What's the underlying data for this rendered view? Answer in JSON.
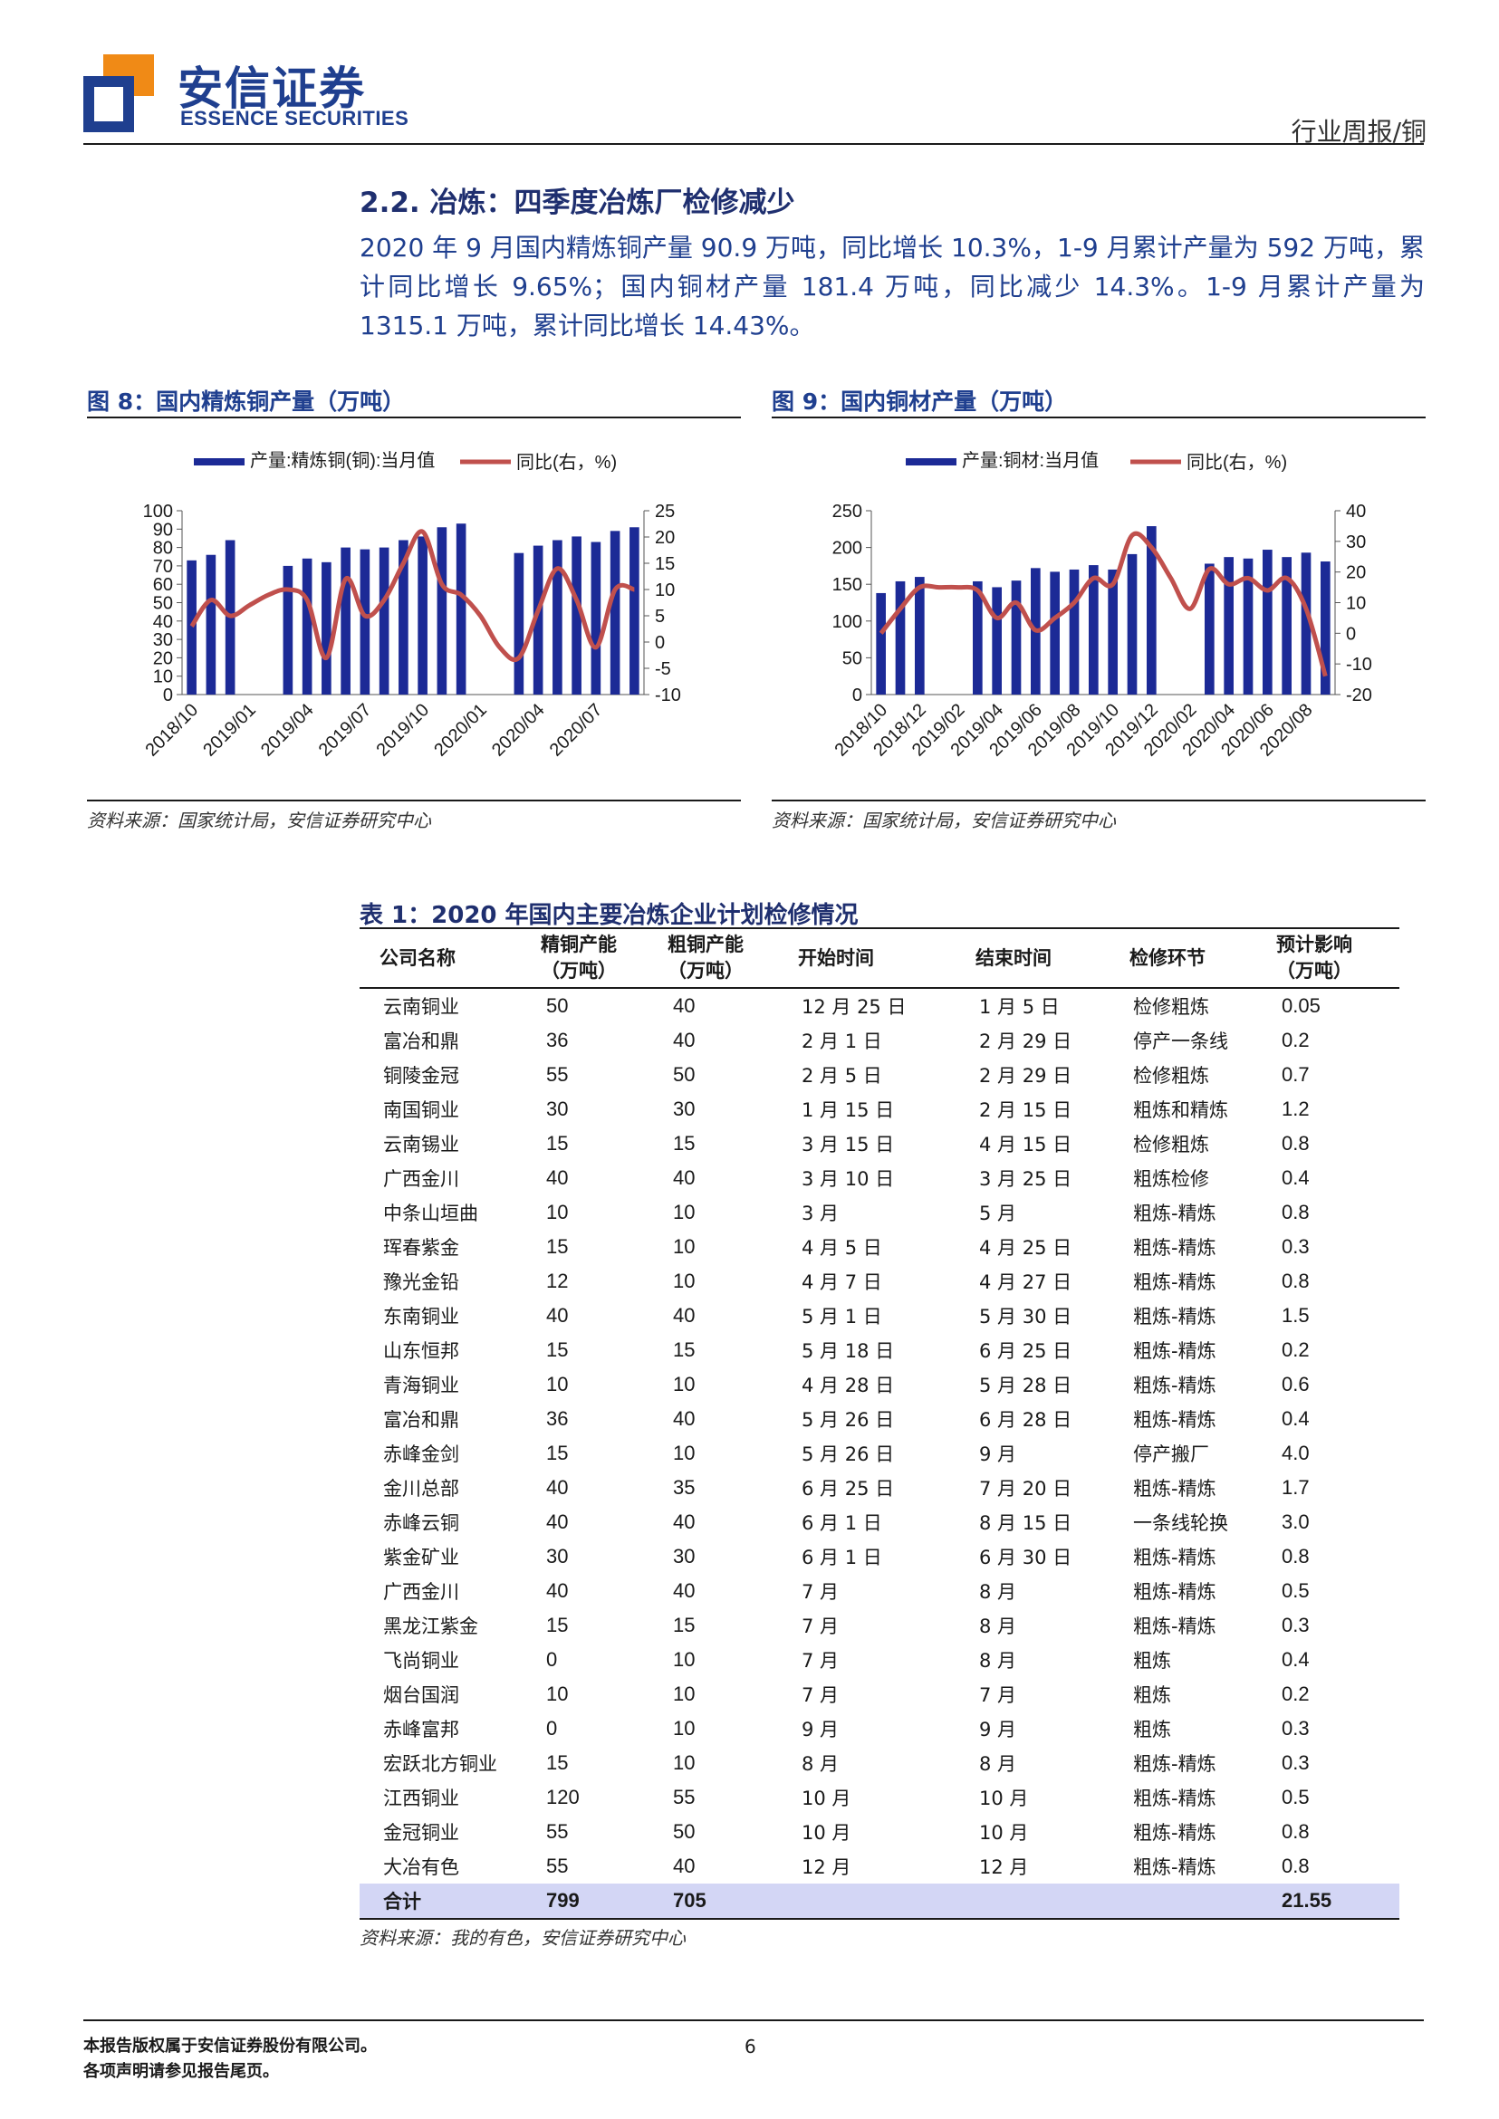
{
  "header": {
    "brand_cn": "安信证券",
    "brand_en": "ESSENCE SECURITIES",
    "report_type": "行业周报/铜",
    "logo_colors": {
      "orange": "#f08a16",
      "blue": "#1f3f8f"
    }
  },
  "section": {
    "title": "2.2. 冶炼：四季度冶炼厂检修减少",
    "paragraph": "2020 年 9 月国内精炼铜产量 90.9 万吨，同比增长 10.3%，1-9 月累计产量为 592 万吨，累计同比增长 9.65%；国内铜材产量 181.4 万吨，同比减少 14.3%。1-9 月累计产量为 1315.1 万吨，累计同比增长 14.43%。"
  },
  "figures": [
    {
      "title": "图 8：国内精炼铜产量（万吨）",
      "source": "资料来源：国家统计局，安信证券研究中心"
    },
    {
      "title": "图 9：国内铜材产量（万吨）",
      "source": "资料来源：国家统计局，安信证券研究中心"
    }
  ],
  "chart_data": [
    {
      "type": "bar",
      "legend": [
        "产量:精炼铜(铜):当月值",
        "同比(右，%)"
      ],
      "x_tick_labels": [
        "2018/10",
        "2019/01",
        "2019/04",
        "2019/07",
        "2019/10",
        "2020/01",
        "2020/04",
        "2020/07"
      ],
      "left_ticks": [
        "100",
        "90",
        "80",
        "70",
        "60",
        "50",
        "40",
        "30",
        "20",
        "10",
        "0"
      ],
      "right_ticks": [
        "25",
        "20",
        "15",
        "10",
        "5",
        "0",
        "-5",
        "-10"
      ],
      "ylim": [
        0,
        100
      ],
      "y2lim": [
        -10,
        25
      ],
      "categories": [
        "2018/10",
        "2018/11",
        "2018/12",
        "2019/01",
        "2019/02",
        "2019/03",
        "2019/04",
        "2019/05",
        "2019/06",
        "2019/07",
        "2019/08",
        "2019/09",
        "2019/10",
        "2019/11",
        "2019/12",
        "2020/01",
        "2020/02",
        "2020/03",
        "2020/04",
        "2020/05",
        "2020/06",
        "2020/07",
        "2020/08",
        "2020/09"
      ],
      "series": [
        {
          "name": "产量:精炼铜(铜):当月值",
          "kind": "bar",
          "axis": "left",
          "color": "#1c2a96",
          "values": [
            73,
            76,
            84,
            null,
            null,
            70,
            74,
            72,
            80,
            79,
            80,
            84,
            86,
            91,
            93,
            null,
            null,
            77,
            81,
            84,
            86,
            83,
            89,
            91
          ]
        },
        {
          "name": "同比(右，%)",
          "kind": "line",
          "axis": "right",
          "color": "#c0504d",
          "values": [
            3,
            8,
            5,
            7,
            9,
            10,
            8,
            -3,
            12,
            5,
            8,
            15,
            21,
            11,
            9,
            5,
            -1,
            -3,
            6,
            14,
            8,
            -1,
            10,
            10
          ]
        }
      ]
    },
    {
      "type": "bar",
      "legend": [
        "产量:铜材:当月值",
        "同比(右，%)"
      ],
      "x_tick_labels": [
        "2018/10",
        "2018/12",
        "2019/02",
        "2019/04",
        "2019/06",
        "2019/08",
        "2019/10",
        "2019/12",
        "2020/02",
        "2020/04",
        "2020/06",
        "2020/08"
      ],
      "left_ticks": [
        "250",
        "200",
        "150",
        "100",
        "50",
        "0"
      ],
      "right_ticks": [
        "40",
        "30",
        "20",
        "10",
        "0",
        "-10",
        "-20"
      ],
      "ylim": [
        0,
        250
      ],
      "y2lim": [
        -20,
        40
      ],
      "categories": [
        "2018/10",
        "2018/11",
        "2018/12",
        "2019/01",
        "2019/02",
        "2019/03",
        "2019/04",
        "2019/05",
        "2019/06",
        "2019/07",
        "2019/08",
        "2019/09",
        "2019/10",
        "2019/11",
        "2019/12",
        "2020/01",
        "2020/02",
        "2020/03",
        "2020/04",
        "2020/05",
        "2020/06",
        "2020/07",
        "2020/08",
        "2020/09"
      ],
      "series": [
        {
          "name": "产量:铜材:当月值",
          "kind": "bar",
          "axis": "left",
          "color": "#1c2a96",
          "values": [
            138,
            154,
            160,
            null,
            null,
            154,
            146,
            155,
            172,
            167,
            170,
            176,
            170,
            191,
            229,
            null,
            null,
            178,
            187,
            185,
            197,
            187,
            193,
            181
          ]
        },
        {
          "name": "同比(右，%)",
          "kind": "line",
          "axis": "right",
          "color": "#c0504d",
          "values": [
            0,
            8,
            15,
            15,
            15,
            14,
            5,
            10,
            1,
            5,
            10,
            18,
            16,
            32,
            28,
            18,
            8,
            21,
            16,
            18,
            14,
            18,
            8,
            -14
          ]
        }
      ]
    }
  ],
  "table": {
    "title": "表 1：2020 年国内主要冶炼企业计划检修情况",
    "headers": [
      "公司名称",
      "精铜产能\n（万吨）",
      "粗铜产能\n（万吨）",
      "开始时间",
      "结束时间",
      "检修环节",
      "预计影响\n（万吨）"
    ],
    "rows": [
      [
        "云南铜业",
        "50",
        "40",
        "12 月 25 日",
        "1 月 5 日",
        "检修粗炼",
        "0.05"
      ],
      [
        "富冶和鼎",
        "36",
        "40",
        "2 月 1 日",
        "2 月 29 日",
        "停产一条线",
        "0.2"
      ],
      [
        "铜陵金冠",
        "55",
        "50",
        "2 月 5 日",
        "2 月 29 日",
        "检修粗炼",
        "0.7"
      ],
      [
        "南国铜业",
        "30",
        "30",
        "1 月 15 日",
        "2 月 15 日",
        "粗炼和精炼",
        "1.2"
      ],
      [
        "云南锡业",
        "15",
        "15",
        "3 月 15 日",
        "4 月 15 日",
        "检修粗炼",
        "0.8"
      ],
      [
        "广西金川",
        "40",
        "40",
        "3 月 10 日",
        "3 月 25 日",
        "粗炼检修",
        "0.4"
      ],
      [
        "中条山垣曲",
        "10",
        "10",
        "3 月",
        "5 月",
        "粗炼-精炼",
        "0.8"
      ],
      [
        "珲春紫金",
        "15",
        "10",
        "4 月 5 日",
        "4 月 25 日",
        "粗炼-精炼",
        "0.3"
      ],
      [
        "豫光金铅",
        "12",
        "10",
        "4 月 7 日",
        "4 月 27 日",
        "粗炼-精炼",
        "0.8"
      ],
      [
        "东南铜业",
        "40",
        "40",
        "5 月 1 日",
        "5 月 30 日",
        "粗炼-精炼",
        "1.5"
      ],
      [
        "山东恒邦",
        "15",
        "15",
        "5 月 18 日",
        "6 月 25 日",
        "粗炼-精炼",
        "0.2"
      ],
      [
        "青海铜业",
        "10",
        "10",
        "4 月 28 日",
        "5 月 28 日",
        "粗炼-精炼",
        "0.6"
      ],
      [
        "富冶和鼎",
        "36",
        "40",
        "5 月 26 日",
        "6 月 28 日",
        "粗炼-精炼",
        "0.4"
      ],
      [
        "赤峰金剑",
        "15",
        "10",
        "5 月 26 日",
        "9 月",
        "停产搬厂",
        "4.0"
      ],
      [
        "金川总部",
        "40",
        "35",
        "6 月 25 日",
        "7 月 20 日",
        "粗炼-精炼",
        "1.7"
      ],
      [
        "赤峰云铜",
        "40",
        "40",
        "6 月 1 日",
        "8 月 15 日",
        "一条线轮换",
        "3.0"
      ],
      [
        "紫金矿业",
        "30",
        "30",
        "6 月 1 日",
        "6 月 30 日",
        "粗炼-精炼",
        "0.8"
      ],
      [
        "广西金川",
        "40",
        "40",
        "7 月",
        "8 月",
        "粗炼-精炼",
        "0.5"
      ],
      [
        "黑龙江紫金",
        "15",
        "15",
        "7 月",
        "8 月",
        "粗炼-精炼",
        "0.3"
      ],
      [
        "飞尚铜业",
        "0",
        "10",
        "7 月",
        "8 月",
        "粗炼",
        "0.4"
      ],
      [
        "烟台国润",
        "10",
        "10",
        "7 月",
        "7 月",
        "粗炼",
        "0.2"
      ],
      [
        "赤峰富邦",
        "0",
        "10",
        "9 月",
        "9 月",
        "粗炼",
        "0.3"
      ],
      [
        "宏跃北方铜业",
        "15",
        "10",
        "8 月",
        "8 月",
        "粗炼-精炼",
        "0.3"
      ],
      [
        "江西铜业",
        "120",
        "55",
        "10 月",
        "10 月",
        "粗炼-精炼",
        "0.5"
      ],
      [
        "金冠铜业",
        "55",
        "50",
        "10 月",
        "10 月",
        "粗炼-精炼",
        "0.8"
      ],
      [
        "大冶有色",
        "55",
        "40",
        "12 月",
        "12 月",
        "粗炼-精炼",
        "0.8"
      ]
    ],
    "total": {
      "label": "合计",
      "refined": "799",
      "blister": "705",
      "impact": "21.55"
    },
    "source": "资料来源：我的有色，安信证券研究中心"
  },
  "footer": {
    "copyright_line1": "本报告版权属于安信证券股份有限公司。",
    "copyright_line2": "各项声明请参见报告尾页。",
    "page_number": "6"
  }
}
